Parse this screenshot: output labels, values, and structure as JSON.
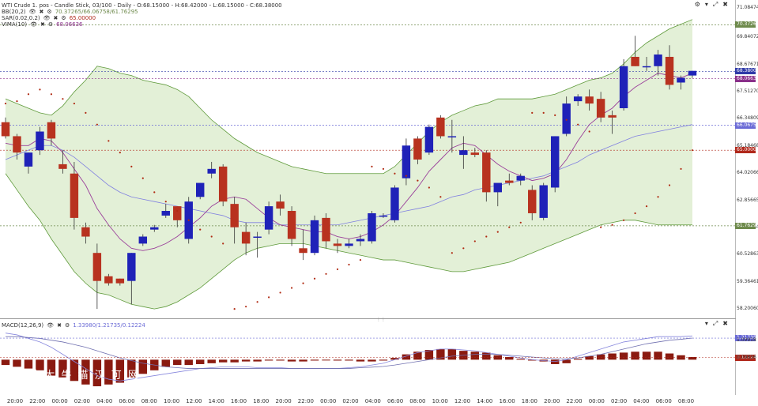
{
  "header": {
    "line1": "WTI Crude 1. pos - Candle Stick, 03/100 - Daily - O:68.15000 - H:68.42000 - L:68.15000 - C:68.38000",
    "line2_name": "BB(20,2)",
    "line2_values": "70.37265/66.06758/61.76295",
    "line3_name": "SAR(0.02,0.2)",
    "line3_value": "65.00000",
    "line4_name": "VIMA(10)",
    "line4_value": "68.06636",
    "macd_name": "MACD(12,26,9)",
    "macd_values": "1.33980/1.21735/0.12224"
  },
  "watermark": {
    "line1": "招 财 大 牛 猫 汉 可 网",
    "line2": "com"
  },
  "colors": {
    "up": "#1f22b8",
    "down": "#b8321f",
    "band_fill": "#e3f0d7",
    "band_line": "#5f9a3b",
    "sar": "#b02a12",
    "wma": "#9a3f9a",
    "mid": "#8080e0"
  },
  "y_axis": {
    "ticks": [
      "71.08474",
      "69.84072",
      "68.67671",
      "67.51270",
      "66.34809",
      "65.18468",
      "64.02066",
      "62.85665",
      "61.69264",
      "60.52863",
      "59.36461",
      "58.20060"
    ],
    "tags": [
      {
        "label": "70.37265",
        "value": 70.37265,
        "color": "#6e8a4c"
      },
      {
        "label": "68.38000",
        "value": 68.38,
        "color": "#2f3aa8"
      },
      {
        "label": "68.06636",
        "value": 68.06636,
        "color": "#8a2f8a"
      },
      {
        "label": "66.06758",
        "value": 66.06758,
        "color": "#6b6bd6"
      },
      {
        "label": "65.00000",
        "value": 65.0,
        "color": "#b0281b"
      },
      {
        "label": "61.76295",
        "value": 61.76295,
        "color": "#6e8a4c"
      }
    ]
  },
  "macd_axis": {
    "ticks": [
      "1.09918",
      "0.09836"
    ],
    "tags": [
      {
        "label": "1.21735",
        "value": 1.21735,
        "color": "#6b6bd6"
      },
      {
        "label": "0.12224",
        "value": 0.12224,
        "color": "#b0281b"
      }
    ]
  },
  "x_axis": {
    "ticks": [
      "20:00",
      "22:00",
      "00:00",
      "02:00",
      "04:00",
      "06:00",
      "08:00",
      "10:00",
      "12:00",
      "14:00",
      "16:00",
      "18:00",
      "20:00",
      "22:00",
      "00:00",
      "02:00",
      "04:00",
      "06:00",
      "08:00",
      "10:00",
      "12:00",
      "14:00",
      "16:00",
      "18:00",
      "20:00",
      "22:00",
      "00:00",
      "02:00",
      "04:00",
      "06:00",
      "08:00"
    ]
  },
  "chart_data": {
    "type": "candlestick",
    "symbol": "WTI Crude 1. pos",
    "timeframe": "Daily",
    "ylim": [
      57.9,
      71.3
    ],
    "candles": [
      {
        "o": 66.2,
        "h": 66.4,
        "l": 65.5,
        "c": 65.6
      },
      {
        "o": 65.6,
        "h": 65.7,
        "l": 64.6,
        "c": 64.9
      },
      {
        "o": 64.3,
        "h": 64.9,
        "l": 64.0,
        "c": 64.9
      },
      {
        "o": 65.0,
        "h": 66.0,
        "l": 64.8,
        "c": 65.8
      },
      {
        "o": 66.2,
        "h": 66.3,
        "l": 65.2,
        "c": 65.5
      },
      {
        "o": 64.4,
        "h": 65.0,
        "l": 64.0,
        "c": 64.2
      },
      {
        "o": 64.0,
        "h": 64.5,
        "l": 61.6,
        "c": 62.1
      },
      {
        "o": 61.7,
        "h": 61.9,
        "l": 61.0,
        "c": 61.3
      },
      {
        "o": 60.6,
        "h": 61.0,
        "l": 58.2,
        "c": 59.4
      },
      {
        "o": 59.6,
        "h": 59.7,
        "l": 59.2,
        "c": 59.3
      },
      {
        "o": 59.5,
        "h": 59.5,
        "l": 59.2,
        "c": 59.3
      },
      {
        "o": 59.4,
        "h": 60.6,
        "l": 58.4,
        "c": 60.6
      },
      {
        "o": 61.0,
        "h": 61.4,
        "l": 60.9,
        "c": 61.3
      },
      {
        "o": 61.6,
        "h": 61.8,
        "l": 61.5,
        "c": 61.7
      },
      {
        "o": 62.2,
        "h": 62.7,
        "l": 62.1,
        "c": 62.4
      },
      {
        "o": 62.6,
        "h": 62.6,
        "l": 61.7,
        "c": 62.0
      },
      {
        "o": 61.2,
        "h": 63.0,
        "l": 61.0,
        "c": 62.8
      },
      {
        "o": 63.0,
        "h": 63.6,
        "l": 62.9,
        "c": 63.6
      },
      {
        "o": 64.0,
        "h": 64.5,
        "l": 63.8,
        "c": 64.2
      },
      {
        "o": 64.3,
        "h": 64.4,
        "l": 62.6,
        "c": 62.8
      },
      {
        "o": 62.7,
        "h": 63.0,
        "l": 61.0,
        "c": 61.7
      },
      {
        "o": 61.5,
        "h": 61.9,
        "l": 60.5,
        "c": 61.0
      },
      {
        "o": 61.3,
        "h": 61.5,
        "l": 60.4,
        "c": 61.3
      },
      {
        "o": 61.6,
        "h": 62.8,
        "l": 61.4,
        "c": 62.6
      },
      {
        "o": 62.8,
        "h": 63.1,
        "l": 62.2,
        "c": 62.5
      },
      {
        "o": 62.4,
        "h": 62.6,
        "l": 60.9,
        "c": 61.2
      },
      {
        "o": 60.8,
        "h": 61.6,
        "l": 60.3,
        "c": 60.6
      },
      {
        "o": 60.6,
        "h": 62.2,
        "l": 60.5,
        "c": 62.0
      },
      {
        "o": 62.1,
        "h": 62.3,
        "l": 60.8,
        "c": 61.1
      },
      {
        "o": 61.0,
        "h": 61.2,
        "l": 60.6,
        "c": 60.9
      },
      {
        "o": 60.9,
        "h": 61.2,
        "l": 60.8,
        "c": 61.0
      },
      {
        "o": 61.1,
        "h": 61.4,
        "l": 60.9,
        "c": 61.2
      },
      {
        "o": 61.1,
        "h": 62.4,
        "l": 61.0,
        "c": 62.3
      },
      {
        "o": 62.2,
        "h": 62.3,
        "l": 62.1,
        "c": 62.2
      },
      {
        "o": 62.0,
        "h": 63.5,
        "l": 61.9,
        "c": 63.4
      },
      {
        "o": 63.8,
        "h": 65.5,
        "l": 63.5,
        "c": 65.2
      },
      {
        "o": 65.5,
        "h": 65.6,
        "l": 64.4,
        "c": 64.6
      },
      {
        "o": 64.9,
        "h": 66.1,
        "l": 64.8,
        "c": 66.0
      },
      {
        "o": 66.4,
        "h": 66.5,
        "l": 65.5,
        "c": 65.6
      },
      {
        "o": 65.6,
        "h": 66.3,
        "l": 64.9,
        "c": 65.6
      },
      {
        "o": 64.8,
        "h": 65.6,
        "l": 64.2,
        "c": 65.0
      },
      {
        "o": 64.9,
        "h": 65.1,
        "l": 64.7,
        "c": 64.8
      },
      {
        "o": 64.9,
        "h": 65.0,
        "l": 62.8,
        "c": 63.2
      },
      {
        "o": 63.2,
        "h": 63.5,
        "l": 62.6,
        "c": 63.6
      },
      {
        "o": 63.7,
        "h": 64.0,
        "l": 63.5,
        "c": 63.6
      },
      {
        "o": 63.7,
        "h": 64.0,
        "l": 63.5,
        "c": 63.9
      },
      {
        "o": 63.3,
        "h": 63.5,
        "l": 62.0,
        "c": 62.3
      },
      {
        "o": 62.1,
        "h": 63.6,
        "l": 62.0,
        "c": 63.5
      },
      {
        "o": 63.4,
        "h": 65.6,
        "l": 63.2,
        "c": 65.6
      },
      {
        "o": 65.7,
        "h": 67.3,
        "l": 65.6,
        "c": 67.0
      },
      {
        "o": 67.1,
        "h": 67.4,
        "l": 66.9,
        "c": 67.3
      },
      {
        "o": 67.3,
        "h": 67.6,
        "l": 66.7,
        "c": 67.0
      },
      {
        "o": 67.2,
        "h": 67.5,
        "l": 66.2,
        "c": 66.4
      },
      {
        "o": 66.5,
        "h": 66.7,
        "l": 65.7,
        "c": 66.4
      },
      {
        "o": 66.8,
        "h": 68.9,
        "l": 66.7,
        "c": 68.6
      },
      {
        "o": 69.0,
        "h": 69.9,
        "l": 68.6,
        "c": 68.6
      },
      {
        "o": 68.6,
        "h": 69.0,
        "l": 68.4,
        "c": 68.6
      },
      {
        "o": 68.6,
        "h": 69.3,
        "l": 68.2,
        "c": 69.1
      },
      {
        "o": 69.0,
        "h": 69.5,
        "l": 67.6,
        "c": 67.8
      },
      {
        "o": 67.9,
        "h": 68.2,
        "l": 67.6,
        "c": 68.1
      },
      {
        "o": 68.2,
        "h": 68.4,
        "l": 68.1,
        "c": 68.4
      }
    ],
    "bb_upper": [
      67.2,
      67.0,
      66.8,
      66.6,
      66.5,
      66.9,
      67.5,
      68.0,
      68.6,
      68.5,
      68.3,
      68.2,
      68.0,
      67.9,
      67.8,
      67.6,
      67.3,
      66.8,
      66.3,
      65.9,
      65.5,
      65.2,
      64.9,
      64.7,
      64.5,
      64.3,
      64.2,
      64.1,
      64.0,
      64.0,
      64.0,
      64.0,
      64.0,
      64.0,
      64.3,
      64.8,
      65.3,
      65.8,
      66.2,
      66.5,
      66.7,
      66.9,
      67.0,
      67.2,
      67.2,
      67.2,
      67.2,
      67.3,
      67.4,
      67.6,
      67.8,
      68.0,
      68.1,
      68.3,
      68.7,
      69.2,
      69.6,
      69.9,
      70.2,
      70.4,
      70.6
    ],
    "bb_lower": [
      64.0,
      63.3,
      62.6,
      62.0,
      61.2,
      60.5,
      59.8,
      59.3,
      58.9,
      58.8,
      58.6,
      58.4,
      58.3,
      58.2,
      58.3,
      58.5,
      58.8,
      59.1,
      59.5,
      59.9,
      60.3,
      60.6,
      60.8,
      60.9,
      61.0,
      61.0,
      61.0,
      60.9,
      60.8,
      60.7,
      60.6,
      60.5,
      60.4,
      60.3,
      60.3,
      60.2,
      60.1,
      60.0,
      59.9,
      59.8,
      59.8,
      59.9,
      60.0,
      60.1,
      60.2,
      60.4,
      60.6,
      60.8,
      61.0,
      61.2,
      61.4,
      61.6,
      61.8,
      61.9,
      62.0,
      62.0,
      61.9,
      61.8,
      61.8,
      61.8,
      61.8
    ],
    "bb_mid": [
      64.6,
      64.8,
      65.0,
      65.2,
      65.2,
      65.0,
      64.7,
      64.3,
      63.9,
      63.5,
      63.2,
      63.0,
      62.9,
      62.8,
      62.7,
      62.6,
      62.5,
      62.4,
      62.3,
      62.2,
      62.0,
      61.9,
      61.9,
      61.9,
      61.8,
      61.8,
      61.8,
      61.8,
      61.8,
      61.8,
      61.9,
      62.0,
      62.1,
      62.2,
      62.3,
      62.4,
      62.5,
      62.6,
      62.8,
      63.0,
      63.1,
      63.3,
      63.4,
      63.5,
      63.6,
      63.7,
      63.8,
      63.9,
      64.1,
      64.3,
      64.5,
      64.8,
      65.0,
      65.2,
      65.4,
      65.6,
      65.7,
      65.8,
      65.9,
      66.0,
      66.1
    ],
    "wma": [
      65.3,
      65.2,
      65.2,
      65.5,
      65.4,
      64.9,
      64.2,
      63.5,
      62.5,
      61.8,
      61.2,
      60.8,
      60.7,
      60.8,
      61.0,
      61.3,
      61.7,
      62.1,
      62.6,
      62.9,
      63.0,
      62.9,
      62.5,
      62.1,
      61.8,
      61.7,
      61.6,
      61.5,
      61.5,
      61.3,
      61.2,
      61.3,
      61.5,
      61.8,
      62.2,
      62.8,
      63.4,
      64.1,
      64.6,
      65.1,
      65.3,
      65.2,
      64.8,
      64.4,
      64.1,
      63.9,
      63.7,
      63.8,
      64.0,
      64.6,
      65.4,
      66.1,
      66.5,
      66.8,
      67.3,
      67.7,
      68.0,
      68.3,
      68.2,
      68.1,
      68.3
    ],
    "sar": [
      67.0,
      67.1,
      67.4,
      67.6,
      67.4,
      67.2,
      67.0,
      66.6,
      66.1,
      65.4,
      64.9,
      64.3,
      63.8,
      63.2,
      62.8,
      62.4,
      62.0,
      61.6,
      61.3,
      61.0,
      58.2,
      58.3,
      58.5,
      58.7,
      58.9,
      59.1,
      59.3,
      59.5,
      59.7,
      59.9,
      60.1,
      60.3,
      64.3,
      64.2,
      64.0,
      63.9,
      63.7,
      63.4,
      63.0,
      60.6,
      60.8,
      61.1,
      61.3,
      61.5,
      61.7,
      61.9,
      66.6,
      66.6,
      66.5,
      66.3,
      66.1,
      65.8,
      61.7,
      61.8,
      62.0,
      62.3,
      62.6,
      63.0,
      63.5,
      64.2,
      65.0
    ],
    "macd": {
      "ylim": [
        -1.9,
        2.2
      ],
      "histogram": [
        -0.3,
        -0.4,
        -0.5,
        -0.6,
        -0.9,
        -1.0,
        -1.2,
        -1.4,
        -1.5,
        -1.4,
        -1.3,
        -1.0,
        -0.8,
        -0.6,
        -0.4,
        -0.3,
        -0.3,
        -0.25,
        -0.2,
        -0.15,
        -0.15,
        -0.1,
        -0.1,
        -0.05,
        -0.05,
        -0.1,
        -0.1,
        -0.05,
        0.0,
        -0.05,
        -0.05,
        -0.1,
        -0.1,
        -0.05,
        0.1,
        0.3,
        0.45,
        0.55,
        0.6,
        0.6,
        0.5,
        0.45,
        0.4,
        0.25,
        0.15,
        0.05,
        -0.05,
        -0.1,
        -0.25,
        -0.2,
        0.05,
        0.2,
        0.3,
        0.35,
        0.4,
        0.45,
        0.45,
        0.45,
        0.35,
        0.25,
        0.15
      ],
      "macd_line": [
        1.5,
        1.4,
        1.2,
        1.0,
        0.7,
        0.3,
        -0.1,
        -0.5,
        -0.9,
        -1.1,
        -1.2,
        -1.1,
        -1.0,
        -0.9,
        -0.8,
        -0.7,
        -0.6,
        -0.5,
        -0.45,
        -0.4,
        -0.4,
        -0.4,
        -0.45,
        -0.45,
        -0.45,
        -0.5,
        -0.5,
        -0.5,
        -0.5,
        -0.5,
        -0.45,
        -0.4,
        -0.3,
        -0.2,
        0.0,
        0.2,
        0.4,
        0.5,
        0.6,
        0.6,
        0.55,
        0.5,
        0.4,
        0.3,
        0.2,
        0.1,
        0.0,
        -0.05,
        -0.1,
        0.0,
        0.2,
        0.4,
        0.6,
        0.8,
        1.0,
        1.1,
        1.2,
        1.3,
        1.3,
        1.3,
        1.34
      ],
      "signal_line": [
        1.3,
        1.3,
        1.25,
        1.2,
        1.1,
        1.0,
        0.85,
        0.7,
        0.5,
        0.3,
        0.1,
        -0.05,
        -0.2,
        -0.3,
        -0.4,
        -0.45,
        -0.5,
        -0.5,
        -0.5,
        -0.5,
        -0.5,
        -0.5,
        -0.5,
        -0.5,
        -0.5,
        -0.5,
        -0.5,
        -0.5,
        -0.5,
        -0.5,
        -0.5,
        -0.45,
        -0.42,
        -0.38,
        -0.3,
        -0.2,
        -0.1,
        0.0,
        0.1,
        0.2,
        0.25,
        0.3,
        0.3,
        0.3,
        0.25,
        0.2,
        0.15,
        0.1,
        0.05,
        0.05,
        0.1,
        0.2,
        0.3,
        0.45,
        0.6,
        0.75,
        0.9,
        1.0,
        1.1,
        1.15,
        1.22
      ]
    }
  }
}
